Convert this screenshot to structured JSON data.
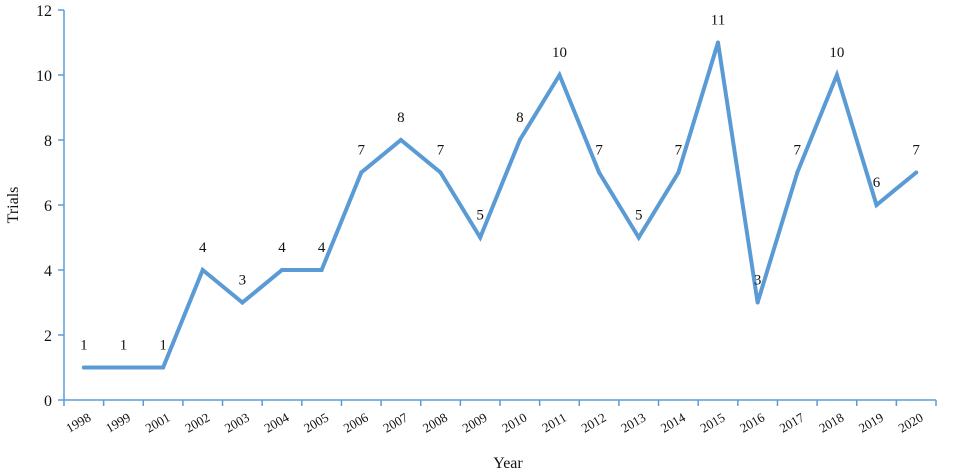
{
  "chart_data": {
    "type": "line",
    "title": "",
    "xlabel": "Year",
    "ylabel": "Trials",
    "ylim": [
      0,
      12
    ],
    "yticks": [
      0,
      2,
      4,
      6,
      8,
      10,
      12
    ],
    "grid": false,
    "legend": "none",
    "line_color": "#5b9bd5",
    "axis_color": "#5b9bd5",
    "categories": [
      "1998",
      "1999",
      "2001",
      "2002",
      "2003",
      "2004",
      "2005",
      "2006",
      "2007",
      "2008",
      "2009",
      "2010",
      "2011",
      "2012",
      "2013",
      "2014",
      "2015",
      "2016",
      "2017",
      "2018",
      "2019",
      "2020"
    ],
    "values": [
      1,
      1,
      1,
      4,
      3,
      4,
      4,
      7,
      8,
      7,
      5,
      8,
      10,
      7,
      5,
      7,
      11,
      3,
      7,
      10,
      6,
      7
    ]
  }
}
